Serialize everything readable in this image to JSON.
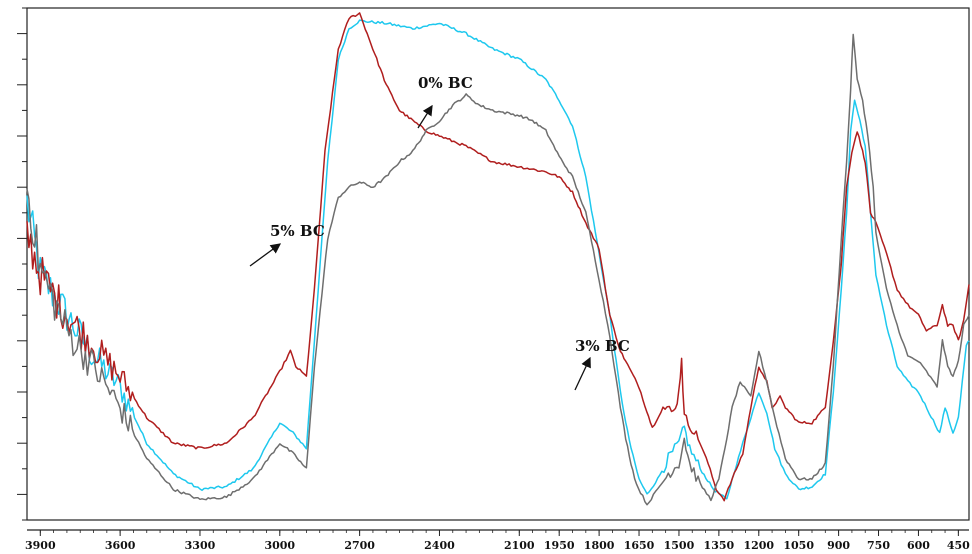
{
  "chart_data": {
    "type": "line",
    "title": "",
    "xlabel": "",
    "ylabel": "",
    "xlim": [
      3950,
      410
    ],
    "ylim": [
      0,
      100
    ],
    "x_reversed": true,
    "y_tick_labels_shown": false,
    "grid": false,
    "legend": "none",
    "x_ticks": [
      {
        "value": 3900,
        "label": "3900"
      },
      {
        "value": 3600,
        "label": "3600"
      },
      {
        "value": 3300,
        "label": "3300"
      },
      {
        "value": 3000,
        "label": "3000"
      },
      {
        "value": 2700,
        "label": "2700"
      },
      {
        "value": 2400,
        "label": "2400"
      },
      {
        "value": 2100,
        "label": "2100"
      },
      {
        "value": 1950,
        "label": "1950"
      },
      {
        "value": 1800,
        "label": "1800"
      },
      {
        "value": 1650,
        "label": "1650"
      },
      {
        "value": 1500,
        "label": "1500"
      },
      {
        "value": 1350,
        "label": "1350"
      },
      {
        "value": 1200,
        "label": "1200"
      },
      {
        "value": 1050,
        "label": "1050"
      },
      {
        "value": 900,
        "label": "900"
      },
      {
        "value": 750,
        "label": "750"
      },
      {
        "value": 600,
        "label": "600"
      },
      {
        "value": 450,
        "label": "450"
      }
    ],
    "annotations": [
      {
        "text": "0% BC",
        "color": "#111111",
        "arrow_to": {
          "x": 1920,
          "y": 87
        }
      },
      {
        "text": "5% BC",
        "color": "#111111",
        "arrow_to": {
          "x": 2750,
          "y": 53
        }
      },
      {
        "text": "3% BC",
        "color": "#111111",
        "arrow_to": {
          "x": 1480,
          "y": 28
        }
      }
    ],
    "series": [
      {
        "color": "#1ec8ee",
        "noisy_until": 3550,
        "points": [
          [
            3950,
            62
          ],
          [
            3900,
            48
          ],
          [
            3800,
            40
          ],
          [
            3700,
            32
          ],
          [
            3600,
            26
          ],
          [
            3500,
            15
          ],
          [
            3400,
            9
          ],
          [
            3300,
            6
          ],
          [
            3200,
            6.5
          ],
          [
            3100,
            10
          ],
          [
            3000,
            19
          ],
          [
            2950,
            17
          ],
          [
            2900,
            14
          ],
          [
            2870,
            35
          ],
          [
            2820,
            70
          ],
          [
            2780,
            90
          ],
          [
            2740,
            96
          ],
          [
            2700,
            97.5
          ],
          [
            2600,
            97
          ],
          [
            2500,
            96
          ],
          [
            2400,
            97
          ],
          [
            2300,
            95
          ],
          [
            2200,
            92
          ],
          [
            2100,
            90
          ],
          [
            2000,
            86
          ],
          [
            1950,
            82
          ],
          [
            1900,
            77
          ],
          [
            1850,
            67
          ],
          [
            1800,
            52
          ],
          [
            1760,
            40
          ],
          [
            1720,
            25
          ],
          [
            1700,
            19
          ],
          [
            1680,
            14
          ],
          [
            1650,
            8
          ],
          [
            1620,
            5
          ],
          [
            1580,
            8
          ],
          [
            1540,
            12
          ],
          [
            1500,
            15
          ],
          [
            1480,
            18
          ],
          [
            1460,
            14
          ],
          [
            1420,
            10
          ],
          [
            1370,
            6
          ],
          [
            1320,
            4
          ],
          [
            1300,
            8
          ],
          [
            1260,
            15
          ],
          [
            1230,
            20
          ],
          [
            1200,
            25
          ],
          [
            1170,
            21
          ],
          [
            1140,
            14
          ],
          [
            1100,
            9
          ],
          [
            1050,
            6
          ],
          [
            1000,
            6.5
          ],
          [
            950,
            9
          ],
          [
            920,
            25
          ],
          [
            890,
            45
          ],
          [
            870,
            60
          ],
          [
            855,
            76
          ],
          [
            840,
            82
          ],
          [
            820,
            78
          ],
          [
            800,
            73
          ],
          [
            780,
            60
          ],
          [
            760,
            48
          ],
          [
            720,
            38
          ],
          [
            680,
            30
          ],
          [
            640,
            27
          ],
          [
            600,
            25
          ],
          [
            560,
            21
          ],
          [
            520,
            17
          ],
          [
            500,
            22
          ],
          [
            470,
            17
          ],
          [
            450,
            20
          ],
          [
            420,
            34
          ],
          [
            410,
            35
          ]
        ]
      },
      {
        "color": "#b01e1e",
        "noisy_until": 3550,
        "points": [
          [
            3950,
            56
          ],
          [
            3900,
            48
          ],
          [
            3800,
            40
          ],
          [
            3700,
            34
          ],
          [
            3600,
            28
          ],
          [
            3500,
            20
          ],
          [
            3400,
            15
          ],
          [
            3300,
            14
          ],
          [
            3200,
            15
          ],
          [
            3100,
            20
          ],
          [
            3000,
            29
          ],
          [
            2960,
            33
          ],
          [
            2940,
            30
          ],
          [
            2900,
            28
          ],
          [
            2870,
            45
          ],
          [
            2830,
            72
          ],
          [
            2780,
            92
          ],
          [
            2740,
            98
          ],
          [
            2700,
            99
          ],
          [
            2650,
            92
          ],
          [
            2600,
            85
          ],
          [
            2550,
            80
          ],
          [
            2500,
            78
          ],
          [
            2450,
            76
          ],
          [
            2400,
            75
          ],
          [
            2300,
            73
          ],
          [
            2200,
            70
          ],
          [
            2100,
            69
          ],
          [
            2000,
            68
          ],
          [
            1950,
            67
          ],
          [
            1900,
            64
          ],
          [
            1850,
            58
          ],
          [
            1800,
            53
          ],
          [
            1760,
            40
          ],
          [
            1720,
            33
          ],
          [
            1700,
            31
          ],
          [
            1680,
            29
          ],
          [
            1650,
            26
          ],
          [
            1600,
            18
          ],
          [
            1560,
            22
          ],
          [
            1520,
            21
          ],
          [
            1500,
            25
          ],
          [
            1490,
            32
          ],
          [
            1480,
            20
          ],
          [
            1450,
            18
          ],
          [
            1420,
            15
          ],
          [
            1390,
            11
          ],
          [
            1360,
            6
          ],
          [
            1330,
            4
          ],
          [
            1300,
            8
          ],
          [
            1260,
            13
          ],
          [
            1230,
            22
          ],
          [
            1200,
            30
          ],
          [
            1170,
            27
          ],
          [
            1150,
            22
          ],
          [
            1120,
            24
          ],
          [
            1100,
            22
          ],
          [
            1050,
            19
          ],
          [
            1000,
            19
          ],
          [
            950,
            22
          ],
          [
            920,
            35
          ],
          [
            890,
            50
          ],
          [
            870,
            65
          ],
          [
            850,
            72
          ],
          [
            830,
            76
          ],
          [
            810,
            72
          ],
          [
            800,
            70
          ],
          [
            780,
            60
          ],
          [
            760,
            58
          ],
          [
            720,
            52
          ],
          [
            680,
            45
          ],
          [
            640,
            42
          ],
          [
            600,
            40
          ],
          [
            570,
            37
          ],
          [
            530,
            38
          ],
          [
            510,
            42
          ],
          [
            490,
            38
          ],
          [
            470,
            38
          ],
          [
            450,
            35
          ],
          [
            430,
            39
          ],
          [
            410,
            46
          ]
        ]
      },
      {
        "color": "#6e6e6e",
        "noisy_until": 3550,
        "points": [
          [
            3950,
            65
          ],
          [
            3900,
            49
          ],
          [
            3800,
            37
          ],
          [
            3700,
            30
          ],
          [
            3600,
            22
          ],
          [
            3500,
            12
          ],
          [
            3400,
            6
          ],
          [
            3300,
            4
          ],
          [
            3200,
            4.5
          ],
          [
            3100,
            8
          ],
          [
            3000,
            15
          ],
          [
            2950,
            13
          ],
          [
            2900,
            10
          ],
          [
            2870,
            30
          ],
          [
            2820,
            55
          ],
          [
            2780,
            63
          ],
          [
            2740,
            65
          ],
          [
            2700,
            66
          ],
          [
            2650,
            65
          ],
          [
            2600,
            67
          ],
          [
            2550,
            70
          ],
          [
            2500,
            72
          ],
          [
            2450,
            76
          ],
          [
            2400,
            78
          ],
          [
            2350,
            81
          ],
          [
            2300,
            83
          ],
          [
            2250,
            81
          ],
          [
            2200,
            80
          ],
          [
            2100,
            79
          ],
          [
            2050,
            78
          ],
          [
            2000,
            76
          ],
          [
            1950,
            71
          ],
          [
            1900,
            67
          ],
          [
            1850,
            60
          ],
          [
            1800,
            47
          ],
          [
            1760,
            36
          ],
          [
            1720,
            22
          ],
          [
            1700,
            16
          ],
          [
            1680,
            11
          ],
          [
            1660,
            7
          ],
          [
            1620,
            3
          ],
          [
            1580,
            6
          ],
          [
            1540,
            9
          ],
          [
            1500,
            11
          ],
          [
            1480,
            16
          ],
          [
            1460,
            11
          ],
          [
            1420,
            7
          ],
          [
            1380,
            4
          ],
          [
            1350,
            8
          ],
          [
            1320,
            16
          ],
          [
            1300,
            22
          ],
          [
            1270,
            27
          ],
          [
            1230,
            24
          ],
          [
            1200,
            33
          ],
          [
            1170,
            27
          ],
          [
            1140,
            20
          ],
          [
            1100,
            12
          ],
          [
            1050,
            8
          ],
          [
            1000,
            8
          ],
          [
            950,
            11
          ],
          [
            920,
            30
          ],
          [
            890,
            55
          ],
          [
            870,
            70
          ],
          [
            855,
            84
          ],
          [
            845,
            95
          ],
          [
            830,
            86
          ],
          [
            810,
            82
          ],
          [
            790,
            75
          ],
          [
            770,
            65
          ],
          [
            760,
            56
          ],
          [
            720,
            45
          ],
          [
            680,
            38
          ],
          [
            640,
            32
          ],
          [
            600,
            31
          ],
          [
            570,
            29
          ],
          [
            530,
            26
          ],
          [
            510,
            35
          ],
          [
            490,
            30
          ],
          [
            470,
            28
          ],
          [
            450,
            31
          ],
          [
            430,
            38
          ],
          [
            410,
            40
          ]
        ]
      }
    ]
  }
}
